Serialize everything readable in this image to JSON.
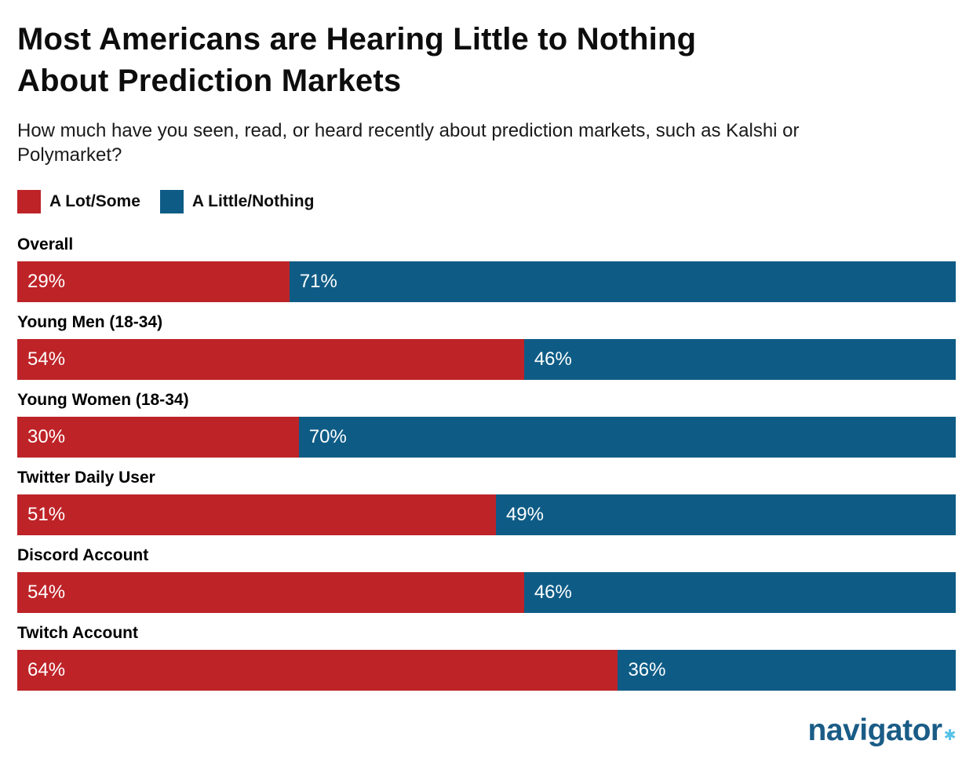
{
  "header": {
    "title_lines": [
      "Most Americans are Hearing Little to Nothing",
      "About Prediction Markets"
    ],
    "subtitle_lines": [
      "How much have you seen, read, or heard recently about prediction markets, such as Kalshi or",
      "Polymarket?"
    ]
  },
  "colors": {
    "a_lot_some": "#be2328",
    "a_little_nothing": "#0e5c86",
    "bar_value_text": "#ffffff",
    "logo_blue": "#1a5c86",
    "logo_star_blue": "#56c1e8"
  },
  "chart_data": {
    "type": "bar",
    "orientation": "horizontal-stacked",
    "title": "Most Americans are Hearing Little to Nothing About Prediction Markets",
    "subtitle": "How much have you seen, read, or heard recently about prediction markets, such as Kalshi or Polymarket?",
    "categories": [
      "Overall",
      "Young Men (18-34)",
      "Young Women (18-34)",
      "Twitter Daily User",
      "Discord Account",
      "Twitch Account"
    ],
    "series": [
      {
        "name": "A Lot/Some",
        "color": "#be2328",
        "values": [
          29,
          54,
          30,
          51,
          54,
          64
        ]
      },
      {
        "name": "A Little/Nothing",
        "color": "#0e5c86",
        "values": [
          71,
          46,
          70,
          49,
          46,
          36
        ]
      }
    ],
    "value_suffix": "%",
    "xlim": [
      0,
      100
    ],
    "grid": false,
    "legend_position": "top-left",
    "value_labels": "inside-start"
  },
  "logo": {
    "text": "navigator",
    "star": "✱"
  }
}
